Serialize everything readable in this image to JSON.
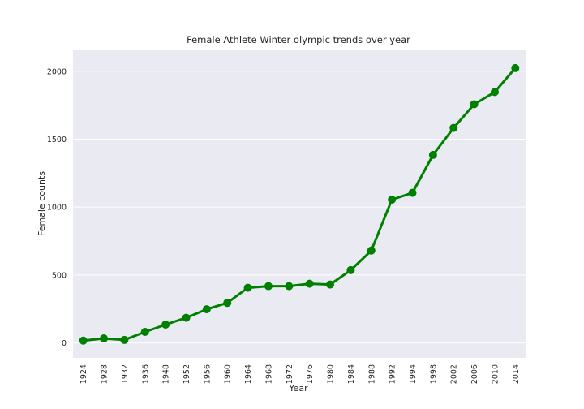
{
  "chart_data": {
    "type": "line",
    "title": "Female Athlete Winter olympic trends over year",
    "xlabel": "Year",
    "ylabel": "Female counts",
    "categories": [
      "1924",
      "1928",
      "1932",
      "1936",
      "1948",
      "1952",
      "1956",
      "1960",
      "1964",
      "1968",
      "1972",
      "1976",
      "1980",
      "1984",
      "1988",
      "1992",
      "1994",
      "1998",
      "2002",
      "2006",
      "2010",
      "2014"
    ],
    "series": [
      {
        "values": [
          17,
          33,
          22,
          81,
          135,
          185,
          248,
          295,
          406,
          418,
          418,
          436,
          430,
          536,
          680,
          1055,
          1105,
          1384,
          1583,
          1757,
          1847,
          2023
        ]
      }
    ],
    "ylim": [
      -110,
      2160
    ],
    "yticks": [
      0,
      500,
      1000,
      1500,
      2000
    ],
    "grid": true,
    "legend": "none",
    "colors": {
      "line": "#008000",
      "plot_background": "#eaeaf2",
      "grid": "#ffffff"
    }
  }
}
